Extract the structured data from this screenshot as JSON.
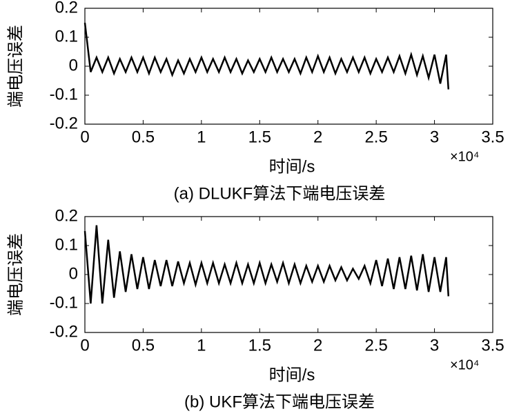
{
  "chart_data": [
    {
      "type": "line",
      "ylabel": "端电压误差",
      "xlabel": "时间/s",
      "x_multiplier": "×10⁴",
      "caption": "(a) DLUKF算法下端电压误差",
      "xlim": [
        0,
        3.5
      ],
      "ylim": [
        -0.2,
        0.2
      ],
      "xticks": [
        0,
        0.5,
        1,
        1.5,
        2,
        2.5,
        3,
        3.5
      ],
      "yticks": [
        -0.2,
        -0.1,
        0,
        0.1,
        0.2
      ],
      "x": [
        0,
        0.05,
        0.1,
        0.15,
        0.2,
        0.25,
        0.3,
        0.35,
        0.4,
        0.45,
        0.5,
        0.55,
        0.6,
        0.65,
        0.7,
        0.75,
        0.8,
        0.85,
        0.9,
        0.95,
        1,
        1.05,
        1.1,
        1.15,
        1.2,
        1.25,
        1.3,
        1.35,
        1.4,
        1.45,
        1.5,
        1.55,
        1.6,
        1.65,
        1.7,
        1.75,
        1.8,
        1.85,
        1.9,
        1.95,
        2,
        2.05,
        2.1,
        2.15,
        2.2,
        2.25,
        2.3,
        2.35,
        2.4,
        2.45,
        2.5,
        2.55,
        2.6,
        2.65,
        2.7,
        2.75,
        2.8,
        2.85,
        2.9,
        2.95,
        3,
        3.05,
        3.1,
        3.12
      ],
      "series": [
        {
          "color": "#000000",
          "values": [
            0.15,
            -0.02,
            0.03,
            -0.02,
            0.03,
            -0.025,
            0.025,
            -0.02,
            0.03,
            -0.02,
            0.03,
            -0.025,
            0.03,
            -0.02,
            0.025,
            -0.03,
            0.02,
            -0.025,
            0.025,
            -0.02,
            0.03,
            -0.02,
            0.025,
            -0.02,
            0.03,
            -0.02,
            0.025,
            -0.025,
            0.02,
            -0.02,
            0.025,
            -0.02,
            0.03,
            -0.02,
            0.025,
            -0.02,
            0.025,
            -0.025,
            0.03,
            -0.02,
            0.035,
            -0.02,
            0.03,
            -0.025,
            0.025,
            -0.02,
            0.03,
            -0.02,
            0.03,
            -0.025,
            0.025,
            -0.02,
            0.03,
            -0.02,
            0.035,
            -0.025,
            0.04,
            -0.03,
            0.035,
            -0.04,
            0.04,
            -0.06,
            0.04,
            -0.08
          ]
        }
      ]
    },
    {
      "type": "line",
      "ylabel": "端电压误差",
      "xlabel": "时间/s",
      "x_multiplier": "×10⁴",
      "caption": "(b) UKF算法下端电压误差",
      "xlim": [
        0,
        3.5
      ],
      "ylim": [
        -0.2,
        0.2
      ],
      "xticks": [
        0,
        0.5,
        1,
        1.5,
        2,
        2.5,
        3,
        3.5
      ],
      "yticks": [
        -0.2,
        -0.1,
        0,
        0.1,
        0.2
      ],
      "x": [
        0,
        0.05,
        0.1,
        0.15,
        0.2,
        0.25,
        0.3,
        0.35,
        0.4,
        0.45,
        0.5,
        0.55,
        0.6,
        0.65,
        0.7,
        0.75,
        0.8,
        0.85,
        0.9,
        0.95,
        1,
        1.05,
        1.1,
        1.15,
        1.2,
        1.25,
        1.3,
        1.35,
        1.4,
        1.45,
        1.5,
        1.55,
        1.6,
        1.65,
        1.7,
        1.75,
        1.8,
        1.85,
        1.9,
        1.95,
        2,
        2.05,
        2.1,
        2.15,
        2.2,
        2.25,
        2.3,
        2.35,
        2.4,
        2.45,
        2.5,
        2.55,
        2.6,
        2.65,
        2.7,
        2.75,
        2.8,
        2.85,
        2.9,
        2.95,
        3,
        3.05,
        3.1,
        3.12
      ],
      "series": [
        {
          "color": "#000000",
          "values": [
            0.15,
            -0.1,
            0.17,
            -0.1,
            0.12,
            -0.08,
            0.08,
            -0.06,
            0.07,
            -0.05,
            0.06,
            -0.05,
            0.05,
            -0.04,
            0.05,
            -0.04,
            0.045,
            -0.03,
            0.04,
            -0.035,
            0.04,
            -0.03,
            0.04,
            -0.03,
            0.035,
            -0.03,
            0.04,
            -0.03,
            0.035,
            -0.03,
            0.04,
            -0.03,
            0.035,
            -0.025,
            0.04,
            -0.03,
            0.035,
            -0.03,
            0.03,
            -0.025,
            0.03,
            -0.025,
            0.03,
            -0.02,
            0.025,
            -0.02,
            0.02,
            -0.015,
            0.03,
            -0.03,
            0.05,
            -0.04,
            0.055,
            -0.05,
            0.06,
            -0.05,
            0.065,
            -0.055,
            0.07,
            -0.06,
            0.06,
            -0.06,
            0.06,
            -0.075
          ]
        }
      ]
    }
  ]
}
